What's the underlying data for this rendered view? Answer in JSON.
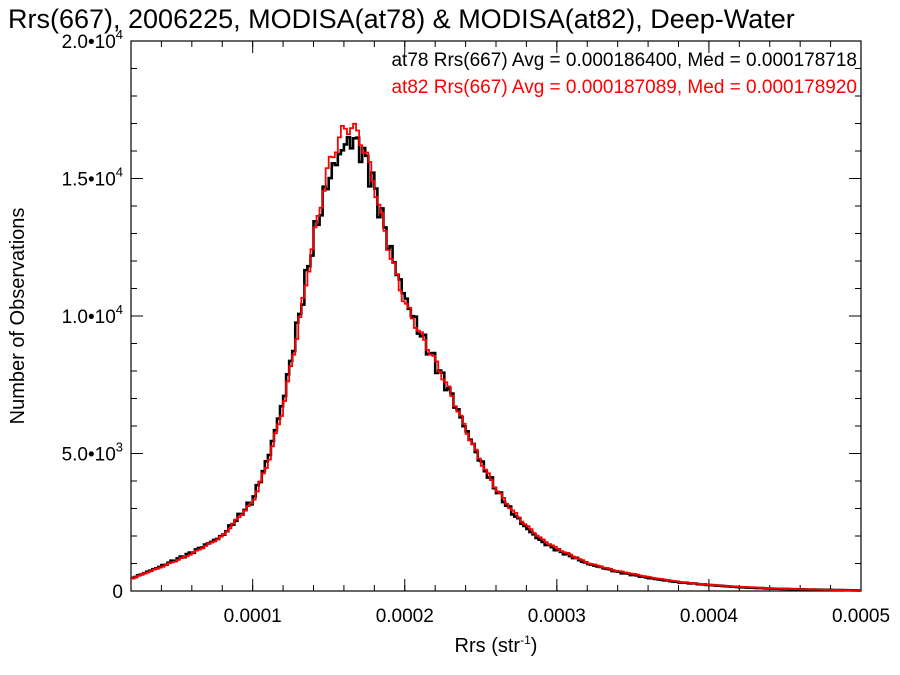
{
  "chart_data": {
    "type": "line",
    "title": "Rrs(667), 2006225, MODISA(at78) & MODISA(at82), Deep-Water",
    "xlabel": "Rrs (str",
    "xlabel_sup": "-1",
    "xlabel_close": ")",
    "ylabel": "Number of Observations",
    "xlim": [
      2e-05,
      0.0005
    ],
    "ylim": [
      0,
      20000
    ],
    "x_ticks": [
      {
        "value": 0.0001,
        "label": "0.0001"
      },
      {
        "value": 0.0002,
        "label": "0.0002"
      },
      {
        "value": 0.0003,
        "label": "0.0003"
      },
      {
        "value": 0.0004,
        "label": "0.0004"
      },
      {
        "value": 0.0005,
        "label": "0.0005"
      }
    ],
    "y_ticks": [
      {
        "value": 0,
        "mant": "0",
        "exp": ""
      },
      {
        "value": 5000,
        "mant": "5.0•10",
        "exp": "3"
      },
      {
        "value": 10000,
        "mant": "1.0•10",
        "exp": "4"
      },
      {
        "value": 15000,
        "mant": "1.5•10",
        "exp": "4"
      },
      {
        "value": 20000,
        "mant": "2.0•10",
        "exp": "4"
      }
    ],
    "annotations": [
      {
        "text": "at78 Rrs(667) Avg = 0.000186400, Med = 0.000178718",
        "color": "#000000"
      },
      {
        "text": "at82 Rrs(667) Avg = 0.000187089, Med = 0.000178920",
        "color": "#ff0000"
      }
    ],
    "grid": false,
    "x": [
      2e-05,
      4e-05,
      6e-05,
      8e-05,
      0.0001,
      0.00011,
      0.00012,
      0.00013,
      0.00014,
      0.00015,
      0.00016,
      0.000165,
      0.00017,
      0.000175,
      0.00018,
      0.00019,
      0.0002,
      0.00021,
      0.00022,
      0.00023,
      0.00024,
      0.00025,
      0.00026,
      0.00027,
      0.00028,
      0.00029,
      0.0003,
      0.00032,
      0.00034,
      0.00036,
      0.00038,
      0.0004,
      0.00042,
      0.00044,
      0.00046,
      0.00048,
      0.0005
    ],
    "series": [
      {
        "name": "at78",
        "color": "#000000",
        "values": [
          450,
          900,
          1400,
          2000,
          3300,
          4800,
          6900,
          9800,
          12800,
          15000,
          16200,
          16400,
          16200,
          15600,
          14700,
          12500,
          10700,
          9400,
          8300,
          7200,
          5900,
          4700,
          3700,
          2900,
          2300,
          1800,
          1500,
          1000,
          700,
          480,
          320,
          220,
          140,
          90,
          60,
          40,
          20
        ]
      },
      {
        "name": "at82",
        "color": "#ff0000",
        "values": [
          430,
          880,
          1380,
          1950,
          3200,
          4700,
          6800,
          9700,
          12700,
          15200,
          16500,
          16700,
          16500,
          15900,
          15000,
          12600,
          10600,
          9300,
          8200,
          7100,
          5900,
          4800,
          3800,
          3000,
          2350,
          1850,
          1530,
          1050,
          730,
          500,
          340,
          230,
          150,
          100,
          65,
          40,
          20
        ]
      }
    ]
  }
}
